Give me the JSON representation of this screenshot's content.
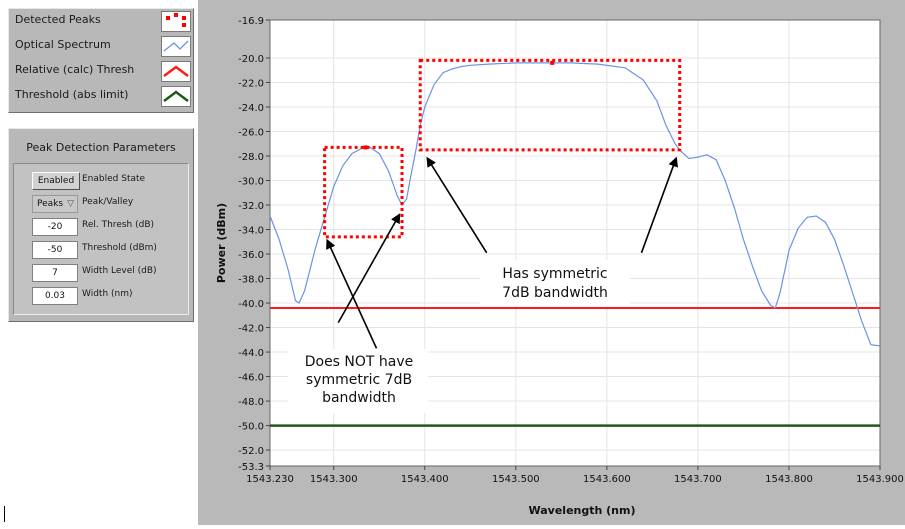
{
  "legend": {
    "items": [
      {
        "label": "Detected Peaks",
        "icon": "dotted-square-icon",
        "color": "#ff0000"
      },
      {
        "label": "Optical Spectrum",
        "icon": "spectrum-line-icon",
        "color": "#6a93e6"
      },
      {
        "label": "Relative (calc) Thresh",
        "icon": "red-line-icon",
        "color": "#ff1a1a"
      },
      {
        "label": "Threshold (abs limit)",
        "icon": "green-line-icon",
        "color": "#1e5b12"
      }
    ]
  },
  "params": {
    "title": "Peak Detection Parameters",
    "rows": [
      {
        "value": "Enabled",
        "label": "Enabled State"
      },
      {
        "value": "Peaks",
        "label": "Peak/Valley"
      },
      {
        "value": "-20",
        "label": "Rel. Thresh (dB)"
      },
      {
        "value": "-50",
        "label": "Threshold (dBm)"
      },
      {
        "value": "7",
        "label": "Width Level (dB)"
      },
      {
        "value": "0.03",
        "label": "Width (nm)"
      }
    ]
  },
  "colors": {
    "spectrum": "#6a93e6",
    "rel_thresh": "#ff1a1a",
    "abs_thresh": "#1e5b12",
    "peaks": "#ff0000"
  },
  "chart_data": {
    "type": "line",
    "xlabel": "Wavelength (nm)",
    "ylabel": "Power (dBm)",
    "xlim": [
      1543.23,
      1543.9
    ],
    "ylim": [
      -53.3,
      -16.9
    ],
    "x_ticks": [
      "1543.230",
      "1543.300",
      "1543.400",
      "1543.500",
      "1543.600",
      "1543.700",
      "1543.800",
      "1543.900"
    ],
    "y_ticks": [
      "-16.9",
      "-20.0",
      "-22.0",
      "-24.0",
      "-26.0",
      "-28.0",
      "-30.0",
      "-32.0",
      "-34.0",
      "-36.0",
      "-38.0",
      "-40.0",
      "-42.0",
      "-44.0",
      "-46.0",
      "-48.0",
      "-50.0",
      "-52.0",
      "-53.3"
    ],
    "grid": true,
    "series": [
      {
        "name": "Optical Spectrum",
        "x": [
          1543.23,
          1543.24,
          1543.25,
          1543.258,
          1543.262,
          1543.268,
          1543.28,
          1543.29,
          1543.3,
          1543.31,
          1543.32,
          1543.33,
          1543.34,
          1543.35,
          1543.36,
          1543.37,
          1543.375,
          1543.38,
          1543.385,
          1543.39,
          1543.395,
          1543.4,
          1543.41,
          1543.42,
          1543.43,
          1543.44,
          1543.45,
          1543.47,
          1543.5,
          1543.53,
          1543.56,
          1543.59,
          1543.62,
          1543.64,
          1543.655,
          1543.665,
          1543.675,
          1543.68,
          1543.69,
          1543.7,
          1543.71,
          1543.72,
          1543.73,
          1543.74,
          1543.75,
          1543.76,
          1543.77,
          1543.78,
          1543.785,
          1543.79,
          1543.795,
          1543.8,
          1543.81,
          1543.82,
          1543.83,
          1543.84,
          1543.85,
          1543.86,
          1543.87,
          1543.88,
          1543.89,
          1543.9
        ],
        "y": [
          -32.9,
          -34.8,
          -37.3,
          -39.8,
          -40.0,
          -39.0,
          -35.5,
          -33.0,
          -30.5,
          -28.8,
          -27.8,
          -27.4,
          -27.3,
          -27.8,
          -29.2,
          -31.3,
          -32.0,
          -31.5,
          -29.5,
          -27.6,
          -25.5,
          -24.0,
          -22.2,
          -21.2,
          -20.9,
          -20.7,
          -20.6,
          -20.5,
          -20.4,
          -20.4,
          -20.4,
          -20.5,
          -20.8,
          -21.8,
          -23.5,
          -25.5,
          -27.0,
          -27.5,
          -28.2,
          -28.1,
          -27.9,
          -28.3,
          -30.0,
          -32.2,
          -34.8,
          -37.0,
          -39.0,
          -40.2,
          -40.4,
          -39.2,
          -37.5,
          -35.7,
          -33.9,
          -33.0,
          -32.9,
          -33.4,
          -34.8,
          -36.9,
          -39.2,
          -41.5,
          -43.4,
          -43.5
        ]
      },
      {
        "name": "Relative (calc) Thresh",
        "value": -40.4
      },
      {
        "name": "Threshold (abs limit)",
        "value": -50.0
      }
    ],
    "detected_peaks": [
      {
        "x": 1543.54,
        "y": -20.4
      },
      {
        "x": 1543.335,
        "y": -27.3
      }
    ],
    "peak_boxes": [
      {
        "x0": 1543.29,
        "x1": 1543.375,
        "y0": -27.3,
        "y1": -34.6
      },
      {
        "x0": 1543.395,
        "x1": 1543.68,
        "y0": -20.2,
        "y1": -27.5
      }
    ],
    "annotations": [
      {
        "text_lines": [
          "Has symmetric",
          "7dB bandwidth"
        ]
      },
      {
        "text_lines": [
          "Does NOT have",
          "symmetric 7dB",
          "bandwidth"
        ]
      }
    ]
  }
}
